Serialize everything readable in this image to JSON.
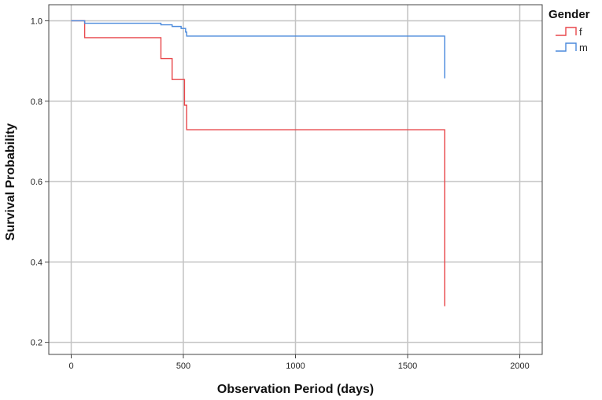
{
  "chart_data": {
    "type": "line",
    "title": "",
    "xlabel": "Observation Period (days)",
    "ylabel": "Survival Probability",
    "xlim": [
      -100,
      2100
    ],
    "ylim": [
      0.17,
      1.04
    ],
    "x_ticks": [
      0,
      500,
      1000,
      1500,
      2000
    ],
    "x_tick_labels": [
      "0",
      "500",
      "1000",
      "1500",
      "2000"
    ],
    "y_ticks": [
      0.2,
      0.4,
      0.6,
      0.8,
      1.0
    ],
    "y_tick_labels": [
      "0.2",
      "0.4",
      "0.6",
      "0.8",
      "1.0"
    ],
    "grid": true,
    "legend_title": "Gender",
    "legend_position": "top-right-outside",
    "series": [
      {
        "name": "f",
        "color": "#e8474b",
        "step": true,
        "x": [
          0,
          60,
          400,
          450,
          505,
          515,
          1665,
          1665
        ],
        "y": [
          1.0,
          0.958,
          0.906,
          0.854,
          0.79,
          0.729,
          0.729,
          0.29
        ]
      },
      {
        "name": "m",
        "color": "#4a89dc",
        "step": true,
        "x": [
          0,
          60,
          400,
          450,
          490,
          510,
          515,
          1665,
          1665
        ],
        "y": [
          1.0,
          0.994,
          0.99,
          0.986,
          0.981,
          0.972,
          0.962,
          0.962,
          0.857
        ]
      }
    ]
  }
}
